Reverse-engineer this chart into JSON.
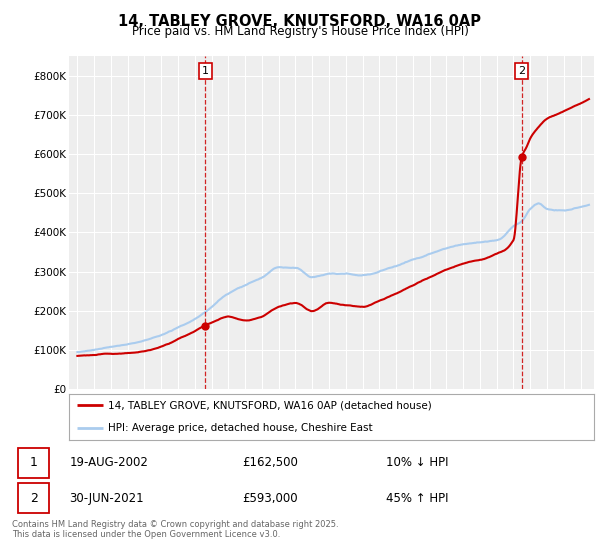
{
  "title_line1": "14, TABLEY GROVE, KNUTSFORD, WA16 0AP",
  "title_line2": "Price paid vs. HM Land Registry's House Price Index (HPI)",
  "ylim": [
    0,
    850000
  ],
  "yticks": [
    0,
    100000,
    200000,
    300000,
    400000,
    500000,
    600000,
    700000,
    800000
  ],
  "ytick_labels": [
    "£0",
    "£100K",
    "£200K",
    "£300K",
    "£400K",
    "£500K",
    "£600K",
    "£700K",
    "£800K"
  ],
  "xlim_start": 1994.5,
  "xlim_end": 2025.8,
  "background_color": "#ffffff",
  "plot_bg_color": "#eeeeee",
  "grid_color": "#ffffff",
  "red_color": "#cc0000",
  "blue_color": "#aaccee",
  "marker1_year": 2002.63,
  "marker1_price": 162500,
  "marker1_label": "1",
  "marker1_date": "19-AUG-2002",
  "marker1_price_str": "£162,500",
  "marker1_hpi": "10% ↓ HPI",
  "marker2_year": 2021.49,
  "marker2_price": 593000,
  "marker2_label": "2",
  "marker2_date": "30-JUN-2021",
  "marker2_price_str": "£593,000",
  "marker2_hpi": "45% ↑ HPI",
  "legend_line1": "14, TABLEY GROVE, KNUTSFORD, WA16 0AP (detached house)",
  "legend_line2": "HPI: Average price, detached house, Cheshire East",
  "footer": "Contains HM Land Registry data © Crown copyright and database right 2025.\nThis data is licensed under the Open Government Licence v3.0."
}
